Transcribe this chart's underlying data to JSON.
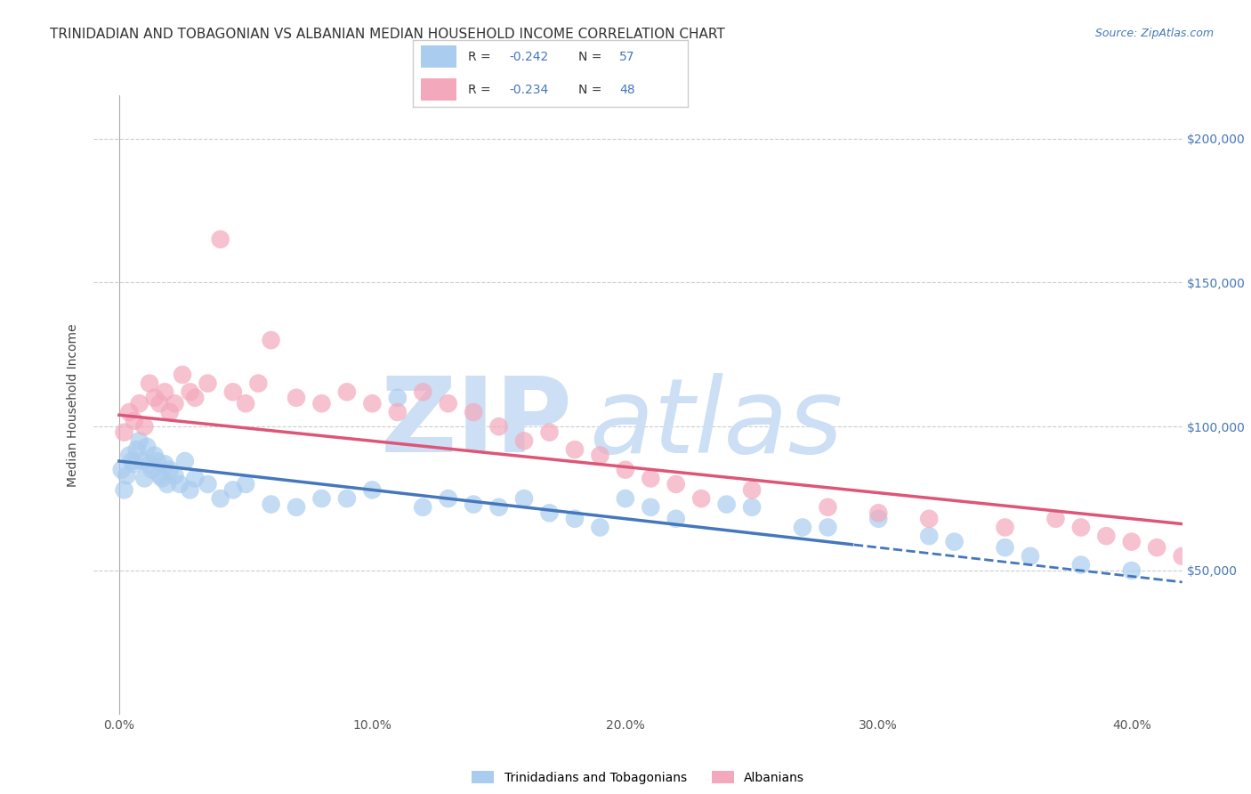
{
  "title": "TRINIDADIAN AND TOBAGONIAN VS ALBANIAN MEDIAN HOUSEHOLD INCOME CORRELATION CHART",
  "source": "Source: ZipAtlas.com",
  "ylabel": "Median Household Income",
  "xtick_labels": [
    "0.0%",
    "10.0%",
    "20.0%",
    "30.0%",
    "40.0%"
  ],
  "xtick_vals": [
    0.0,
    10.0,
    20.0,
    30.0,
    40.0
  ],
  "ytick_labels": [
    "$50,000",
    "$100,000",
    "$150,000",
    "$200,000"
  ],
  "ytick_vals": [
    50000,
    100000,
    150000,
    200000
  ],
  "ylim": [
    0,
    215000
  ],
  "xlim": [
    -1.0,
    42.0
  ],
  "blue_R": -0.242,
  "blue_N": 57,
  "pink_R": -0.234,
  "pink_N": 48,
  "blue_color": "#aaccee",
  "pink_color": "#f4a8bc",
  "blue_edge_color": "#6699cc",
  "pink_edge_color": "#cc6688",
  "blue_line_color": "#4477bb",
  "pink_line_color": "#dd5577",
  "background_color": "#ffffff",
  "watermark_color": "#ccdff5",
  "legend_label_blue": "Trinidadians and Tobagonians",
  "legend_label_pink": "Albanians",
  "title_fontsize": 11,
  "axis_label_fontsize": 10,
  "tick_fontsize": 10,
  "blue_x": [
    0.1,
    0.2,
    0.3,
    0.4,
    0.5,
    0.6,
    0.7,
    0.8,
    0.9,
    1.0,
    1.1,
    1.2,
    1.3,
    1.4,
    1.5,
    1.6,
    1.7,
    1.8,
    1.9,
    2.0,
    2.2,
    2.4,
    2.6,
    2.8,
    3.0,
    3.5,
    4.0,
    4.5,
    5.0,
    6.0,
    7.0,
    8.0,
    9.0,
    10.0,
    11.0,
    12.0,
    13.0,
    14.0,
    15.0,
    16.0,
    17.0,
    18.0,
    19.0,
    20.0,
    21.0,
    22.0,
    24.0,
    25.0,
    27.0,
    28.0,
    30.0,
    32.0,
    33.0,
    35.0,
    36.0,
    38.0,
    40.0
  ],
  "blue_y": [
    85000,
    78000,
    83000,
    90000,
    88000,
    87000,
    92000,
    95000,
    88000,
    82000,
    93000,
    87000,
    85000,
    90000,
    88000,
    83000,
    82000,
    87000,
    80000,
    85000,
    83000,
    80000,
    88000,
    78000,
    82000,
    80000,
    75000,
    78000,
    80000,
    73000,
    72000,
    75000,
    75000,
    78000,
    110000,
    72000,
    75000,
    73000,
    72000,
    75000,
    70000,
    68000,
    65000,
    75000,
    72000,
    68000,
    73000,
    72000,
    65000,
    65000,
    68000,
    62000,
    60000,
    58000,
    55000,
    52000,
    50000
  ],
  "pink_x": [
    0.2,
    0.4,
    0.6,
    0.8,
    1.0,
    1.2,
    1.4,
    1.6,
    1.8,
    2.0,
    2.2,
    2.5,
    2.8,
    3.0,
    3.5,
    4.0,
    4.5,
    5.0,
    5.5,
    6.0,
    7.0,
    8.0,
    9.0,
    10.0,
    11.0,
    12.0,
    13.0,
    14.0,
    15.0,
    16.0,
    17.0,
    18.0,
    19.0,
    20.0,
    21.0,
    22.0,
    23.0,
    25.0,
    28.0,
    30.0,
    32.0,
    35.0,
    37.0,
    38.0,
    39.0,
    40.0,
    41.0,
    42.0
  ],
  "pink_y": [
    98000,
    105000,
    102000,
    108000,
    100000,
    115000,
    110000,
    108000,
    112000,
    105000,
    108000,
    118000,
    112000,
    110000,
    115000,
    165000,
    112000,
    108000,
    115000,
    130000,
    110000,
    108000,
    112000,
    108000,
    105000,
    112000,
    108000,
    105000,
    100000,
    95000,
    98000,
    92000,
    90000,
    85000,
    82000,
    80000,
    75000,
    78000,
    72000,
    70000,
    68000,
    65000,
    68000,
    65000,
    62000,
    60000,
    58000,
    55000
  ],
  "blue_line_start_x": 0.0,
  "blue_line_end_x": 42.0,
  "blue_solid_end_x": 29.0,
  "pink_line_start_x": 0.0,
  "pink_line_end_x": 42.0,
  "blue_intercept": 88000,
  "blue_slope": -1000,
  "pink_intercept": 104000,
  "pink_slope": -900
}
